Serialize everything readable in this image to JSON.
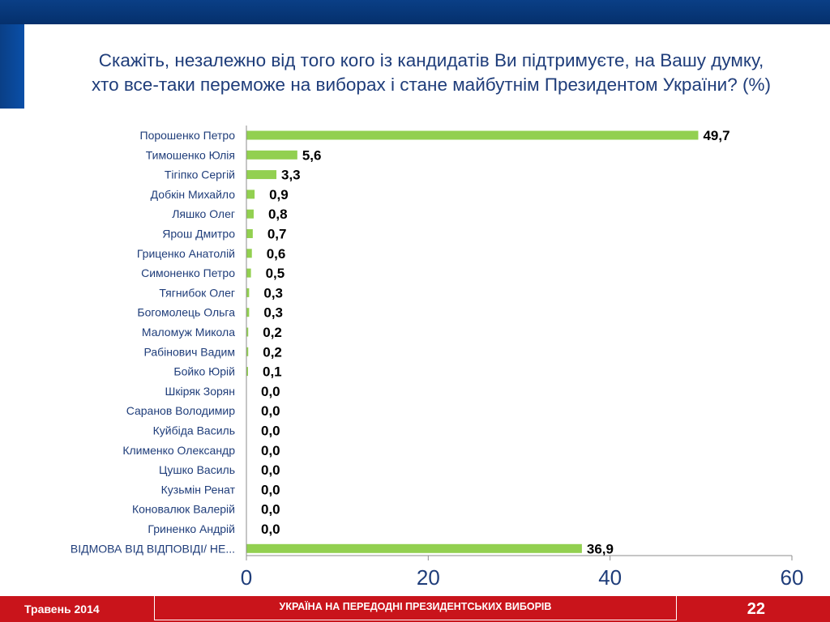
{
  "header": {
    "title_line1": "Скажіть, незалежно від того кого із кандидатів Ви підтримуєте, на Вашу думку,",
    "title_line2": "хто все-таки переможе на виборах і стане майбутнім Президентом України? (%)"
  },
  "footer": {
    "date": "Травень 2014",
    "caption": "УКРАЇНА НА ПЕРЕДОДНІ ПРЕЗИДЕНТСЬКИХ ВИБОРІВ",
    "page": "22"
  },
  "colors": {
    "bar": "#92d050",
    "accent_blue": "#0a3f86",
    "footer_red": "#c9141b",
    "title": "#1f3d7a"
  },
  "chart_data": {
    "type": "bar",
    "orientation": "horizontal",
    "categories": [
      "Порошенко Петро",
      "Тимошенко Юлія",
      "Тігіпко Сергій",
      "Добкін Михайло",
      "Ляшко Олег",
      "Ярош Дмитро",
      "Гриценко Анатолій",
      "Симоненко Петро",
      "Тягнибок Олег",
      "Богомолець Ольга",
      "Маломуж Микола",
      "Рабінович Вадим",
      "Бойко Юрій",
      "Шкіряк Зорян",
      "Саранов Володимир",
      "Куйбіда Василь",
      "Клименко Олександр",
      "Цушко Василь",
      "Кузьмін Ренат",
      "Коновалюк Валерій",
      "Гриненко Андрій",
      "ВІДМОВА ВІД ВІДПОВІДІ/ НЕ..."
    ],
    "values": [
      49.7,
      5.6,
      3.3,
      0.9,
      0.8,
      0.7,
      0.6,
      0.5,
      0.3,
      0.3,
      0.2,
      0.2,
      0.1,
      0.0,
      0.0,
      0.0,
      0.0,
      0.0,
      0.0,
      0.0,
      0.0,
      36.9
    ],
    "value_labels": [
      "49,7",
      "5,6",
      "3,3",
      "0,9",
      "0,8",
      "0,7",
      "0,6",
      "0,5",
      "0,3",
      "0,3",
      "0,2",
      "0,2",
      "0,1",
      "0,0",
      "0,0",
      "0,0",
      "0,0",
      "0,0",
      "0,0",
      "0,0",
      "0,0",
      "36,9"
    ],
    "xlim": [
      0,
      60
    ],
    "xticks": [
      0,
      20,
      40,
      60
    ],
    "xtick_labels": [
      "0",
      "20",
      "40",
      "60"
    ],
    "grid": false,
    "legend": "none",
    "xlabel": "",
    "ylabel": ""
  }
}
